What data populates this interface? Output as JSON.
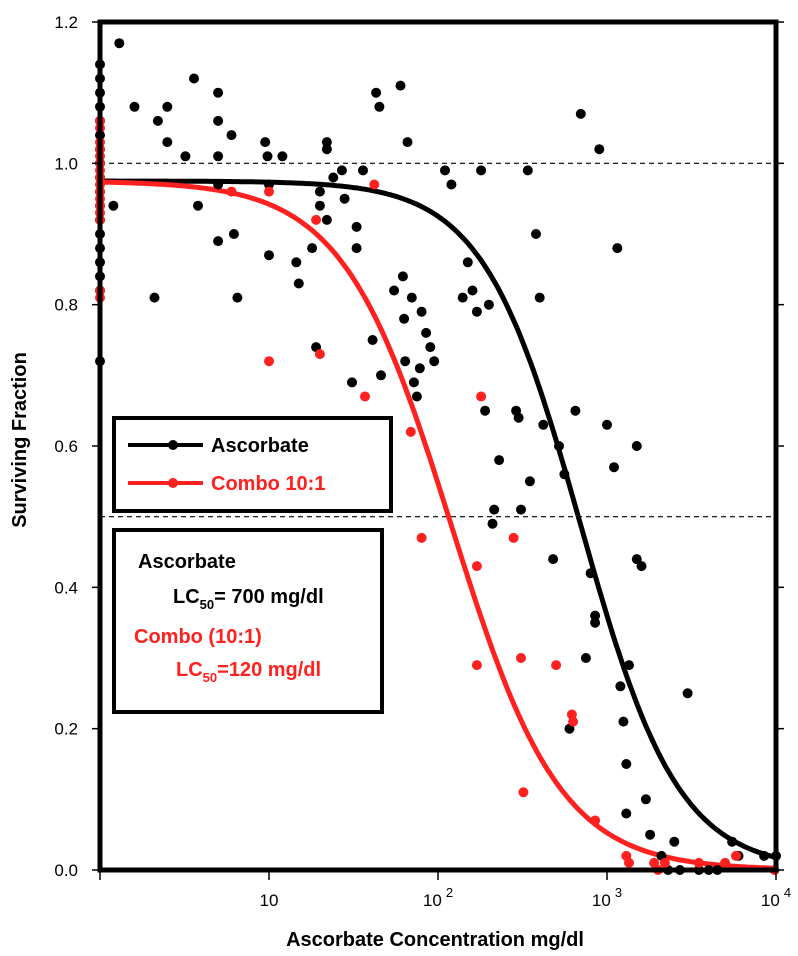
{
  "chart_data": {
    "type": "scatter",
    "xlabel": "Ascorbate Concentration mg/dl",
    "ylabel": "Surviving Fraction",
    "x_scale": "log",
    "xlim": [
      1,
      10000
    ],
    "ylim": [
      0,
      1.2
    ],
    "x_ticks": [
      {
        "value": 10,
        "label": "10"
      },
      {
        "value": 100,
        "label": "10 2"
      },
      {
        "value": 1000,
        "label": "10 3"
      },
      {
        "value": 10000,
        "label": "10 4"
      }
    ],
    "y_ticks": [
      {
        "value": 0.0,
        "label": "0.0"
      },
      {
        "value": 0.2,
        "label": "0.2"
      },
      {
        "value": 0.4,
        "label": "0.4"
      },
      {
        "value": 0.6,
        "label": "0.6"
      },
      {
        "value": 0.8,
        "label": "0.8"
      },
      {
        "value": 1.0,
        "label": "1.0"
      },
      {
        "value": 1.2,
        "label": "1.2"
      }
    ],
    "reference_lines": [
      1.0,
      0.5
    ],
    "legend": {
      "position": "middle-left",
      "entries": [
        {
          "label": "Ascorbate",
          "color": "#000000"
        },
        {
          "label": "Combo 10:1",
          "color": "#ff2020"
        }
      ]
    },
    "annotation": {
      "line1": "Ascorbate",
      "line2_prefix": "LC",
      "line2_sub": "50",
      "line2_suffix": "= 700 mg/dl",
      "line3": "Combo (10:1)",
      "line4_prefix": "LC",
      "line4_sub": "50",
      "line4_suffix": "=120 mg/dl"
    },
    "series": [
      {
        "name": "Ascorbate",
        "color": "#000000",
        "fit": {
          "top": 0.975,
          "lc50": 700,
          "hill": 1.5
        },
        "points": [
          [
            1,
            1.14
          ],
          [
            1,
            1.12
          ],
          [
            1,
            1.1
          ],
          [
            1,
            1.08
          ],
          [
            1,
            1.06
          ],
          [
            1,
            1.04
          ],
          [
            1,
            1.02
          ],
          [
            1,
            1.0
          ],
          [
            1,
            0.98
          ],
          [
            1,
            0.96
          ],
          [
            1,
            0.94
          ],
          [
            1,
            0.92
          ],
          [
            1,
            0.9
          ],
          [
            1,
            0.88
          ],
          [
            1,
            0.86
          ],
          [
            1,
            0.84
          ],
          [
            1,
            0.82
          ],
          [
            1,
            0.72
          ],
          [
            1.3,
            1.17
          ],
          [
            1.2,
            0.94
          ],
          [
            1.6,
            1.08
          ],
          [
            2.2,
            1.06
          ],
          [
            2.1,
            0.81
          ],
          [
            2.5,
            1.08
          ],
          [
            2.5,
            1.03
          ],
          [
            3.2,
            1.01
          ],
          [
            3.6,
            1.12
          ],
          [
            3.8,
            0.94
          ],
          [
            5,
            1.1
          ],
          [
            5,
            1.06
          ],
          [
            5,
            1.01
          ],
          [
            5,
            0.97
          ],
          [
            5,
            0.89
          ],
          [
            6,
            1.04
          ],
          [
            6.2,
            0.9
          ],
          [
            6.5,
            0.81
          ],
          [
            9.5,
            1.03
          ],
          [
            9.8,
            1.01
          ],
          [
            10,
            0.97
          ],
          [
            10,
            0.87
          ],
          [
            12,
            1.01
          ],
          [
            14.5,
            0.86
          ],
          [
            15,
            0.83
          ],
          [
            18,
            0.88
          ],
          [
            19,
            0.74
          ],
          [
            20,
            0.96
          ],
          [
            20,
            0.94
          ],
          [
            22,
            1.03
          ],
          [
            22,
            0.92
          ],
          [
            22,
            1.02
          ],
          [
            24,
            0.98
          ],
          [
            27,
            0.99
          ],
          [
            28,
            0.95
          ],
          [
            30,
            0.61
          ],
          [
            31,
            0.69
          ],
          [
            33,
            0.91
          ],
          [
            33,
            0.88
          ],
          [
            36,
            0.99
          ],
          [
            41,
            0.75
          ],
          [
            43,
            1.1
          ],
          [
            45,
            1.08
          ],
          [
            46,
            0.7
          ],
          [
            55,
            0.82
          ],
          [
            60,
            1.11
          ],
          [
            62,
            0.84
          ],
          [
            63,
            0.78
          ],
          [
            64,
            0.72
          ],
          [
            66,
            1.03
          ],
          [
            70,
            0.81
          ],
          [
            72,
            0.69
          ],
          [
            75,
            0.67
          ],
          [
            78,
            0.71
          ],
          [
            80,
            0.79
          ],
          [
            85,
            0.76
          ],
          [
            90,
            0.74
          ],
          [
            95,
            0.72
          ],
          [
            110,
            0.99
          ],
          [
            120,
            0.97
          ],
          [
            140,
            0.81
          ],
          [
            150,
            0.86
          ],
          [
            160,
            0.82
          ],
          [
            170,
            0.79
          ],
          [
            180,
            0.99
          ],
          [
            190,
            0.65
          ],
          [
            200,
            0.8
          ],
          [
            210,
            0.49
          ],
          [
            215,
            0.51
          ],
          [
            230,
            0.58
          ],
          [
            290,
            0.65
          ],
          [
            300,
            0.64
          ],
          [
            310,
            0.51
          ],
          [
            340,
            0.99
          ],
          [
            350,
            0.55
          ],
          [
            380,
            0.9
          ],
          [
            400,
            0.81
          ],
          [
            420,
            0.63
          ],
          [
            480,
            0.44
          ],
          [
            520,
            0.6
          ],
          [
            560,
            0.56
          ],
          [
            600,
            0.2
          ],
          [
            650,
            0.65
          ],
          [
            700,
            1.07
          ],
          [
            750,
            0.3
          ],
          [
            800,
            0.42
          ],
          [
            850,
            0.36
          ],
          [
            850,
            0.35
          ],
          [
            900,
            1.02
          ],
          [
            1000,
            0.63
          ],
          [
            1100,
            0.57
          ],
          [
            1150,
            0.88
          ],
          [
            1200,
            0.26
          ],
          [
            1250,
            0.21
          ],
          [
            1300,
            0.15
          ],
          [
            1300,
            0.08
          ],
          [
            1350,
            0.29
          ],
          [
            1500,
            0.6
          ],
          [
            1500,
            0.44
          ],
          [
            1600,
            0.43
          ],
          [
            1700,
            0.1
          ],
          [
            1800,
            0.05
          ],
          [
            2100,
            0.02
          ],
          [
            2300,
            0.0
          ],
          [
            2500,
            0.04
          ],
          [
            2700,
            0.0
          ],
          [
            3000,
            0.25
          ],
          [
            3500,
            0.0
          ],
          [
            4000,
            0.0
          ],
          [
            4500,
            0.0
          ],
          [
            5500,
            0.04
          ],
          [
            6000,
            0.02
          ],
          [
            8500,
            0.02
          ],
          [
            10000,
            0.02
          ]
        ]
      },
      {
        "name": "Combo 10:1",
        "color": "#ff2020",
        "fit": {
          "top": 0.975,
          "lc50": 120,
          "hill": 1.35
        },
        "points": [
          [
            1,
            1.06
          ],
          [
            1,
            1.05
          ],
          [
            1,
            1.03
          ],
          [
            1,
            1.02
          ],
          [
            1,
            1.01
          ],
          [
            1,
            1.0
          ],
          [
            1,
            0.99
          ],
          [
            1,
            0.98
          ],
          [
            1,
            0.97
          ],
          [
            1,
            0.96
          ],
          [
            1,
            0.95
          ],
          [
            1,
            0.94
          ],
          [
            1,
            0.93
          ],
          [
            1,
            0.92
          ],
          [
            1,
            0.82
          ],
          [
            1,
            0.81
          ],
          [
            6,
            0.96
          ],
          [
            10,
            0.96
          ],
          [
            10,
            0.72
          ],
          [
            19,
            0.92
          ],
          [
            20,
            0.73
          ],
          [
            37,
            0.67
          ],
          [
            42,
            0.97
          ],
          [
            69,
            0.62
          ],
          [
            80,
            0.47
          ],
          [
            170,
            0.43
          ],
          [
            170,
            0.29
          ],
          [
            180,
            0.67
          ],
          [
            280,
            0.47
          ],
          [
            310,
            0.3
          ],
          [
            320,
            0.11
          ],
          [
            500,
            0.29
          ],
          [
            620,
            0.22
          ],
          [
            630,
            0.21
          ],
          [
            850,
            0.07
          ],
          [
            1300,
            0.02
          ],
          [
            1350,
            0.01
          ],
          [
            1900,
            0.01
          ],
          [
            2000,
            0.0
          ],
          [
            2200,
            0.01
          ],
          [
            3500,
            0.01
          ],
          [
            5000,
            0.01
          ],
          [
            5800,
            0.02
          ],
          [
            9800,
            0.0
          ]
        ]
      }
    ]
  }
}
